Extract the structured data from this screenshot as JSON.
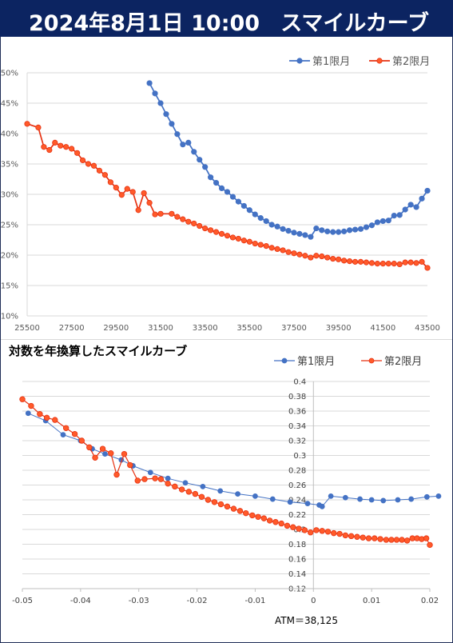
{
  "header": {
    "date": "2024年8月1日 10:00",
    "title": "スマイルカーブ"
  },
  "colors": {
    "header_bg": "#0c2461",
    "series1": "#4472c4",
    "series2": "#e63212",
    "marker2_fill": "#ff5a2a"
  },
  "footer": {
    "atm": "ATM＝38,125"
  },
  "chart_data": [
    {
      "type": "line",
      "title": "",
      "xlabel": "",
      "ylabel": "",
      "xlim": [
        25500,
        43500
      ],
      "ylim": [
        0.1,
        0.5
      ],
      "xticks": [
        "25500",
        "27500",
        "29500",
        "31500",
        "33500",
        "35500",
        "37500",
        "39500",
        "41500",
        "43500"
      ],
      "yticks": [
        "10%",
        "15%",
        "20%",
        "25%",
        "30%",
        "35%",
        "40%",
        "45%",
        "50%"
      ],
      "legend": "top-right",
      "grid": "horizontal",
      "series": [
        {
          "name": "第1限月",
          "points": [
            [
              31000,
              0.483
            ],
            [
              31250,
              0.466
            ],
            [
              31500,
              0.45
            ],
            [
              31750,
              0.432
            ],
            [
              32000,
              0.416
            ],
            [
              32250,
              0.399
            ],
            [
              32500,
              0.382
            ],
            [
              32750,
              0.385
            ],
            [
              33000,
              0.37
            ],
            [
              33250,
              0.357
            ],
            [
              33500,
              0.345
            ],
            [
              33750,
              0.328
            ],
            [
              34000,
              0.319
            ],
            [
              34250,
              0.31
            ],
            [
              34500,
              0.304
            ],
            [
              34750,
              0.296
            ],
            [
              35000,
              0.288
            ],
            [
              35250,
              0.281
            ],
            [
              35500,
              0.274
            ],
            [
              35750,
              0.267
            ],
            [
              36000,
              0.261
            ],
            [
              36250,
              0.256
            ],
            [
              36500,
              0.25
            ],
            [
              36750,
              0.247
            ],
            [
              37000,
              0.243
            ],
            [
              37250,
              0.24
            ],
            [
              37500,
              0.237
            ],
            [
              37750,
              0.235
            ],
            [
              38000,
              0.233
            ],
            [
              38250,
              0.23
            ],
            [
              38500,
              0.244
            ],
            [
              38750,
              0.241
            ],
            [
              39000,
              0.239
            ],
            [
              39250,
              0.238
            ],
            [
              39500,
              0.238
            ],
            [
              39750,
              0.239
            ],
            [
              40000,
              0.241
            ],
            [
              40250,
              0.242
            ],
            [
              40500,
              0.243
            ],
            [
              40750,
              0.246
            ],
            [
              41000,
              0.249
            ],
            [
              41250,
              0.254
            ],
            [
              41500,
              0.256
            ],
            [
              41750,
              0.257
            ],
            [
              42000,
              0.265
            ],
            [
              42250,
              0.266
            ],
            [
              42500,
              0.275
            ],
            [
              42750,
              0.283
            ],
            [
              43000,
              0.279
            ],
            [
              43250,
              0.293
            ],
            [
              43500,
              0.306
            ]
          ]
        },
        {
          "name": "第2限月",
          "points": [
            [
              25500,
              0.416
            ],
            [
              26000,
              0.41
            ],
            [
              26250,
              0.378
            ],
            [
              26500,
              0.373
            ],
            [
              26750,
              0.385
            ],
            [
              27000,
              0.38
            ],
            [
              27250,
              0.378
            ],
            [
              27500,
              0.375
            ],
            [
              27750,
              0.368
            ],
            [
              28000,
              0.356
            ],
            [
              28250,
              0.35
            ],
            [
              28500,
              0.347
            ],
            [
              28750,
              0.339
            ],
            [
              29000,
              0.332
            ],
            [
              29250,
              0.32
            ],
            [
              29500,
              0.311
            ],
            [
              29750,
              0.299
            ],
            [
              30000,
              0.309
            ],
            [
              30250,
              0.304
            ],
            [
              30500,
              0.274
            ],
            [
              30750,
              0.302
            ],
            [
              31000,
              0.286
            ],
            [
              31250,
              0.267
            ],
            [
              31500,
              0.268
            ],
            [
              32000,
              0.268
            ],
            [
              32250,
              0.263
            ],
            [
              32500,
              0.259
            ],
            [
              32750,
              0.255
            ],
            [
              33000,
              0.252
            ],
            [
              33250,
              0.248
            ],
            [
              33500,
              0.244
            ],
            [
              33750,
              0.241
            ],
            [
              34000,
              0.238
            ],
            [
              34250,
              0.235
            ],
            [
              34500,
              0.232
            ],
            [
              34750,
              0.229
            ],
            [
              35000,
              0.227
            ],
            [
              35250,
              0.224
            ],
            [
              35500,
              0.222
            ],
            [
              35750,
              0.219
            ],
            [
              36000,
              0.217
            ],
            [
              36250,
              0.215
            ],
            [
              36500,
              0.212
            ],
            [
              36750,
              0.21
            ],
            [
              37000,
              0.208
            ],
            [
              37250,
              0.205
            ],
            [
              37500,
              0.203
            ],
            [
              37750,
              0.201
            ],
            [
              38000,
              0.199
            ],
            [
              38250,
              0.196
            ],
            [
              38500,
              0.199
            ],
            [
              38750,
              0.198
            ],
            [
              39000,
              0.196
            ],
            [
              39250,
              0.194
            ],
            [
              39500,
              0.193
            ],
            [
              39750,
              0.191
            ],
            [
              40000,
              0.19
            ],
            [
              40250,
              0.189
            ],
            [
              40500,
              0.189
            ],
            [
              40750,
              0.188
            ],
            [
              41000,
              0.187
            ],
            [
              41250,
              0.186
            ],
            [
              41500,
              0.186
            ],
            [
              41750,
              0.186
            ],
            [
              42000,
              0.186
            ],
            [
              42250,
              0.185
            ],
            [
              42500,
              0.188
            ],
            [
              42750,
              0.188
            ],
            [
              43000,
              0.187
            ],
            [
              43250,
              0.189
            ],
            [
              43500,
              0.179
            ]
          ]
        }
      ]
    },
    {
      "type": "line",
      "title": "対数を年換算したスマイルカーブ",
      "xlabel": "",
      "ylabel": "",
      "xlim": [
        -0.05,
        0.02
      ],
      "ylim": [
        0.12,
        0.4
      ],
      "xticks": [
        "-0.05",
        "-0.04",
        "-0.03",
        "-0.02",
        "-0.01",
        "0",
        "0.01",
        "0.02"
      ],
      "yticks": [
        "0.12",
        "0.14",
        "0.16",
        "0.18",
        "0.2",
        "0.22",
        "0.24",
        "0.26",
        "0.28",
        "0.3",
        "0.32",
        "0.34",
        "0.36",
        "0.38",
        "0.4"
      ],
      "legend": "top-right",
      "grid": "horizontal",
      "series": [
        {
          "name": "第1限月",
          "points": [
            [
              -0.049,
              0.357
            ],
            [
              -0.046,
              0.347
            ],
            [
              -0.043,
              0.328
            ],
            [
              -0.04,
              0.32
            ],
            [
              -0.038,
              0.309
            ],
            [
              -0.0358,
              0.302
            ],
            [
              -0.033,
              0.294
            ],
            [
              -0.031,
              0.286
            ],
            [
              -0.028,
              0.277
            ],
            [
              -0.025,
              0.269
            ],
            [
              -0.022,
              0.263
            ],
            [
              -0.019,
              0.258
            ],
            [
              -0.016,
              0.252
            ],
            [
              -0.013,
              0.248
            ],
            [
              -0.01,
              0.245
            ],
            [
              -0.007,
              0.241
            ],
            [
              -0.004,
              0.237
            ],
            [
              -0.001,
              0.235
            ],
            [
              0.001,
              0.233
            ],
            [
              0.0015,
              0.231
            ],
            [
              0.003,
              0.245
            ],
            [
              0.0055,
              0.243
            ],
            [
              0.008,
              0.241
            ],
            [
              0.01,
              0.24
            ],
            [
              0.012,
              0.239
            ],
            [
              0.0145,
              0.24
            ],
            [
              0.0168,
              0.241
            ],
            [
              0.0195,
              0.244
            ],
            [
              0.0215,
              0.245
            ]
          ]
        },
        {
          "name": "第2限月",
          "points": [
            [
              -0.05,
              0.376
            ],
            [
              -0.0485,
              0.367
            ],
            [
              -0.047,
              0.356
            ],
            [
              -0.0458,
              0.351
            ],
            [
              -0.0444,
              0.348
            ],
            [
              -0.0425,
              0.337
            ],
            [
              -0.041,
              0.329
            ],
            [
              -0.0398,
              0.32
            ],
            [
              -0.0385,
              0.311
            ],
            [
              -0.0375,
              0.297
            ],
            [
              -0.0362,
              0.309
            ],
            [
              -0.0348,
              0.303
            ],
            [
              -0.0338,
              0.274
            ],
            [
              -0.0325,
              0.302
            ],
            [
              -0.0315,
              0.287
            ],
            [
              -0.0302,
              0.266
            ],
            [
              -0.029,
              0.268
            ],
            [
              -0.0272,
              0.269
            ],
            [
              -0.0262,
              0.268
            ],
            [
              -0.025,
              0.262
            ],
            [
              -0.0238,
              0.258
            ],
            [
              -0.0226,
              0.254
            ],
            [
              -0.0214,
              0.251
            ],
            [
              -0.0203,
              0.248
            ],
            [
              -0.0192,
              0.244
            ],
            [
              -0.0181,
              0.24
            ],
            [
              -0.017,
              0.237
            ],
            [
              -0.0159,
              0.234
            ],
            [
              -0.0148,
              0.231
            ],
            [
              -0.0137,
              0.228
            ],
            [
              -0.0126,
              0.225
            ],
            [
              -0.0116,
              0.222
            ],
            [
              -0.0105,
              0.219
            ],
            [
              -0.0095,
              0.217
            ],
            [
              -0.0085,
              0.215
            ],
            [
              -0.0075,
              0.212
            ],
            [
              -0.0065,
              0.21
            ],
            [
              -0.0055,
              0.208
            ],
            [
              -0.0045,
              0.205
            ],
            [
              -0.0035,
              0.203
            ],
            [
              -0.0025,
              0.201
            ],
            [
              -0.0015,
              0.199
            ],
            [
              -0.0005,
              0.196
            ],
            [
              0.0005,
              0.199
            ],
            [
              0.0015,
              0.198
            ],
            [
              0.0025,
              0.197
            ],
            [
              0.0035,
              0.195
            ],
            [
              0.0045,
              0.194
            ],
            [
              0.0055,
              0.192
            ],
            [
              0.0065,
              0.191
            ],
            [
              0.0075,
              0.19
            ],
            [
              0.0085,
              0.189
            ],
            [
              0.0095,
              0.188
            ],
            [
              0.0105,
              0.188
            ],
            [
              0.0115,
              0.187
            ],
            [
              0.0125,
              0.186
            ],
            [
              0.0134,
              0.186
            ],
            [
              0.0143,
              0.186
            ],
            [
              0.0152,
              0.186
            ],
            [
              0.0161,
              0.185
            ],
            [
              0.017,
              0.188
            ],
            [
              0.0178,
              0.188
            ],
            [
              0.0186,
              0.187
            ],
            [
              0.0194,
              0.188
            ],
            [
              0.02,
              0.179
            ]
          ]
        }
      ]
    }
  ]
}
